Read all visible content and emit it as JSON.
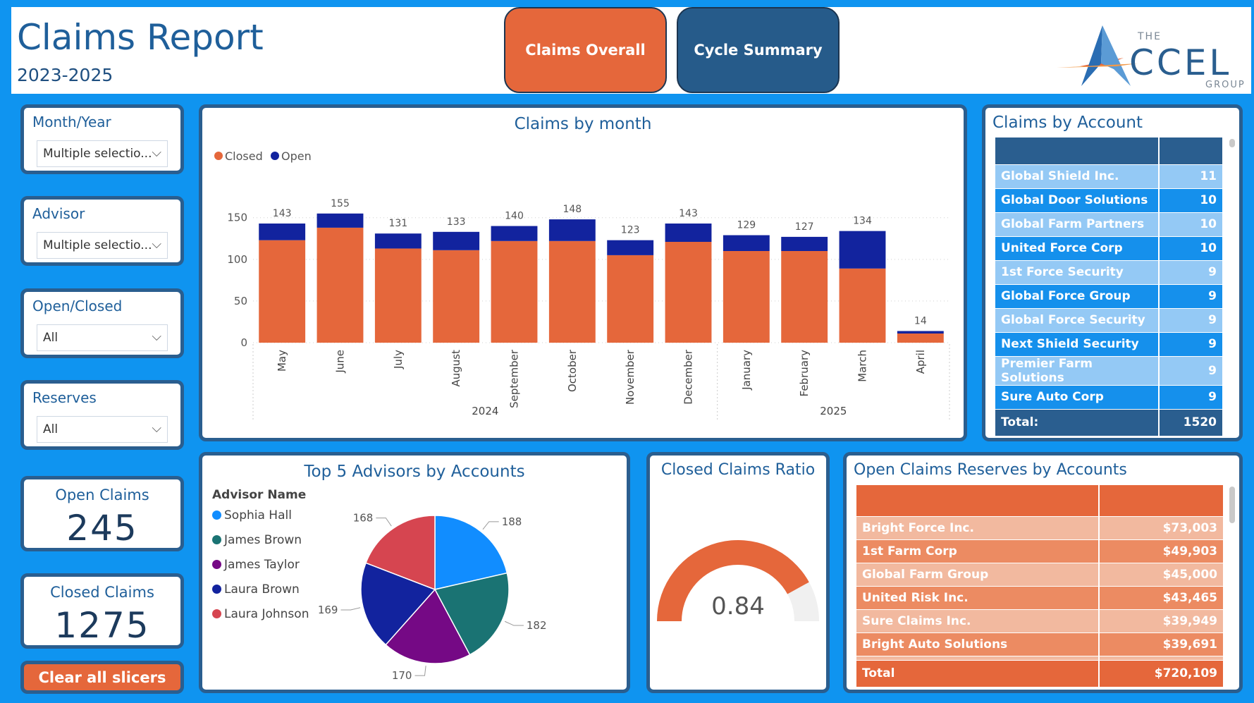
{
  "header": {
    "title": "Claims Report",
    "subtitle": "2023-2025",
    "nav": [
      {
        "label": "Claims Overall"
      },
      {
        "label": "Cycle Summary"
      }
    ],
    "logo": {
      "the": "THE",
      "name": "CCEL",
      "group": "GROUP"
    }
  },
  "slicers": [
    {
      "title": "Month/Year",
      "value": "Multiple selectio..."
    },
    {
      "title": "Advisor",
      "value": "Multiple selectio..."
    },
    {
      "title": "Open/Closed",
      "value": "All"
    },
    {
      "title": "Reserves",
      "value": "All"
    }
  ],
  "cards": {
    "open": {
      "label": "Open Claims",
      "value": "245"
    },
    "closed": {
      "label": "Closed Claims",
      "value": "1275"
    }
  },
  "clear_button": "Clear all slicers",
  "claims_by_month": {
    "title": "Claims by month",
    "legend": [
      "Closed",
      "Open"
    ],
    "colors": {
      "closed": "#e5673b",
      "open": "#12239e"
    }
  },
  "chart_data": [
    {
      "type": "bar",
      "title": "Claims by month",
      "stacked": true,
      "categories": [
        "May",
        "June",
        "July",
        "August",
        "September",
        "October",
        "November",
        "December",
        "January",
        "February",
        "March",
        "April"
      ],
      "groups": [
        {
          "label": "2024",
          "count": 8
        },
        {
          "label": "2025",
          "count": 4
        }
      ],
      "series": [
        {
          "name": "Closed",
          "values": [
            123,
            138,
            113,
            111,
            122,
            122,
            105,
            121,
            110,
            110,
            89,
            11
          ]
        },
        {
          "name": "Open",
          "values": [
            20,
            17,
            18,
            22,
            18,
            26,
            18,
            22,
            19,
            17,
            45,
            3
          ]
        }
      ],
      "totals": [
        143,
        155,
        131,
        133,
        140,
        148,
        123,
        143,
        129,
        127,
        134,
        14
      ],
      "yticks": [
        0,
        50,
        100,
        150
      ],
      "ylim": [
        0,
        165
      ],
      "legend_position": "top-left"
    },
    {
      "type": "pie",
      "title": "Top 5 Advisors by Accounts",
      "legend_title": "Advisor Name",
      "labels": [
        "Sophia Hall",
        "James Brown",
        "James Taylor",
        "Laura Brown",
        "Laura Johnson"
      ],
      "values": [
        188,
        182,
        170,
        169,
        168
      ],
      "colors": [
        "#118dff",
        "#1a7373",
        "#750985",
        "#12239e",
        "#d64550"
      ]
    },
    {
      "type": "gauge",
      "title": "Closed Claims Ratio",
      "value": 0.84,
      "min": 0,
      "max": 1
    }
  ],
  "pie_legend_title": "Advisor Name",
  "gauge": {
    "title": "Closed Claims Ratio",
    "display": "0.84"
  },
  "accounts": {
    "title": "Claims by Account",
    "rows": [
      {
        "name": "Global Shield Inc.",
        "count": "11"
      },
      {
        "name": "Global Door Solutions",
        "count": "10"
      },
      {
        "name": "Global Farm Partners",
        "count": "10"
      },
      {
        "name": "United Force Corp",
        "count": "10"
      },
      {
        "name": "1st Force Security",
        "count": "9"
      },
      {
        "name": "Global Force Group",
        "count": "9"
      },
      {
        "name": "Global Force Security",
        "count": "9"
      },
      {
        "name": "Next Shield Security",
        "count": "9"
      },
      {
        "name": "Premier Farm Solutions",
        "count": "9"
      },
      {
        "name": "Sure Auto Corp",
        "count": "9"
      }
    ],
    "total_label": "Total:",
    "total_value": "1520"
  },
  "reserves": {
    "title": "Open Claims Reserves by Accounts",
    "rows": [
      {
        "name": "Bright Force Inc.",
        "amount": "$73,003"
      },
      {
        "name": "1st Farm Corp",
        "amount": "$49,903"
      },
      {
        "name": "Global Farm Group",
        "amount": "$45,000"
      },
      {
        "name": "United Risk Inc.",
        "amount": "$43,465"
      },
      {
        "name": "Sure Claims Inc.",
        "amount": "$39,949"
      },
      {
        "name": "Bright Auto Solutions",
        "amount": "$39,691"
      }
    ],
    "total_label": "Total",
    "total_value": "$720,109"
  }
}
